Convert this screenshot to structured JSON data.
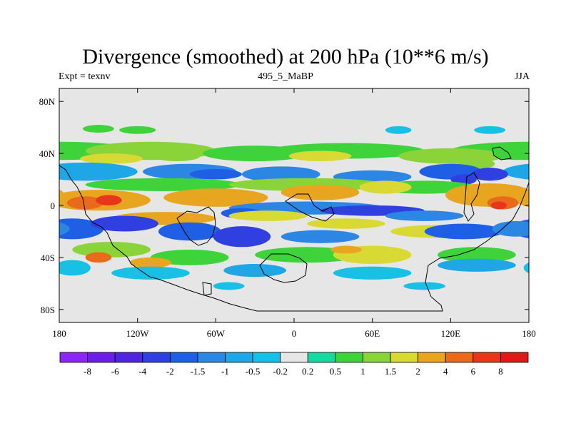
{
  "chart_data": {
    "type": "heatmap",
    "title": "Divergence (smoothed) at 200 hPa (10**6 m/s)",
    "left_label": "Expt = texnv",
    "center_label": "495_5_MaBP",
    "right_label": "JJA",
    "x_ticks": [
      "180",
      "120W",
      "60W",
      "0",
      "60E",
      "120E",
      "180"
    ],
    "x_tick_values": [
      -180,
      -120,
      -60,
      0,
      60,
      120,
      180
    ],
    "y_ticks": [
      "80N",
      "40N",
      "0",
      "40S",
      "80S"
    ],
    "y_tick_values": [
      80,
      40,
      0,
      -40,
      -80
    ],
    "xlim": [
      -180,
      180
    ],
    "ylim": [
      -90,
      90
    ],
    "levels": [
      "-8",
      "-6",
      "-4",
      "-2",
      "-1.5",
      "-1",
      "-0.5",
      "-0.2",
      "0.2",
      "0.5",
      "1",
      "1.5",
      "2",
      "4",
      "6",
      "8"
    ],
    "colors": [
      "#8b27f2",
      "#6b1ee8",
      "#4f26de",
      "#2f3fe0",
      "#1f5fe6",
      "#2b86e4",
      "#1ea6e6",
      "#18c0e6",
      "#e6e6e6",
      "#16d9a0",
      "#3ed33a",
      "#8ad43a",
      "#d9d934",
      "#e8a620",
      "#e86a1a",
      "#e8361c",
      "#e01818"
    ]
  }
}
